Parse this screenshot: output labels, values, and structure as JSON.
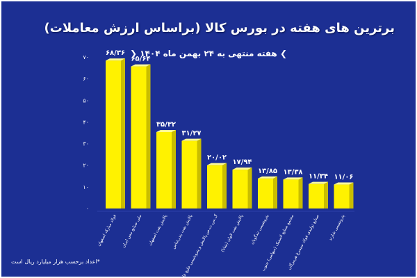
{
  "title": "برترین های هفته در بورس کالا (براساس ارزش معاملات)",
  "subtitle": "هفته منتهی به ۲۴ بهمن ماه ۱۴۰۴",
  "footnote": "*اعداد برحسب هزار میلیارد ریال است",
  "colors": {
    "background": "#1c2f93",
    "bar_front": "#fff200",
    "bar_side": "#c9bd00",
    "bar_top": "#fffb9a",
    "text": "#ffffff"
  },
  "chart_data": {
    "type": "bar",
    "ylim": [
      0,
      70
    ],
    "yticks": [
      "۰",
      "۱۰",
      "۲۰",
      "۳۰",
      "۴۰",
      "۵۰",
      "۶۰",
      "۷۰"
    ],
    "grid": false,
    "categories": [
      "فولاد مبارکه اصفهان",
      "ملی صنایع مس ایران",
      "پالایش نفت اصفهان",
      "پالایش نفت بندرعباس",
      "گ.س.ت.ص.پالایش و پتروشیمی خلیج فارس",
      "پالایش نفت لاوان (شانا)",
      "پتروشیمی تندگویان",
      "مجتمع صنایع لاستیک (سهامی) جنوب",
      "صنایع تولیدی فولاد سیمرغ هرمزگان",
      "پتروشیمی شازند"
    ],
    "values": [
      68.36,
      65.64,
      35.32,
      31.27,
      20.02,
      17.94,
      13.85,
      13.38,
      11.34,
      11.06
    ],
    "labels": [
      "۶۸/۳۶",
      "۶۵/۶۴",
      "۳۵/۳۲",
      "۳۱/۲۷",
      "۲۰/۰۲",
      "۱۷/۹۴",
      "۱۳/۸۵",
      "۱۳/۳۸",
      "۱۱/۳۴",
      "۱۱/۰۶"
    ]
  }
}
